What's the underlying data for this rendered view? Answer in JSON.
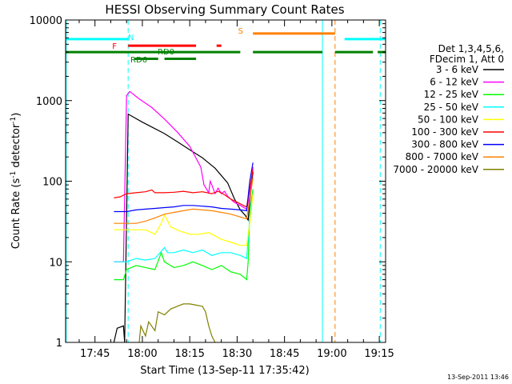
{
  "chart_data": {
    "type": "line",
    "title": "HESSI Observing Summary Count Rates",
    "xlabel": "Start Time (13-Sep-11 17:35:42)",
    "ylabel_main": "Count Rate (s",
    "ylabel_sup1": "-1",
    "ylabel_mid": " detector",
    "ylabel_sup2": "-1",
    "ylabel_end": ")",
    "y_scale": "log",
    "ylim": [
      1,
      10000
    ],
    "xlim_min": [
      1055.7,
      1157
    ],
    "x_ticks": [
      {
        "min": 1065,
        "label": "17:45"
      },
      {
        "min": 1080,
        "label": "18:00"
      },
      {
        "min": 1095,
        "label": "18:15"
      },
      {
        "min": 1110,
        "label": "18:30"
      },
      {
        "min": 1125,
        "label": "18:45"
      },
      {
        "min": 1140,
        "label": "19:00"
      },
      {
        "min": 1155,
        "label": "19:15"
      }
    ],
    "y_ticks": [
      {
        "v": 1,
        "label": "1"
      },
      {
        "v": 10,
        "label": "10"
      },
      {
        "v": 100,
        "label": "100"
      },
      {
        "v": 1000,
        "label": "1000"
      },
      {
        "v": 10000,
        "label": "10000"
      }
    ],
    "legend_header": [
      "Det 1,3,4,5,6,",
      "FDecim 1, Att 0"
    ],
    "legend_placement": "right",
    "series": [
      {
        "name": "3 - 6 keV",
        "color": "#000000",
        "points": [
          [
            1071,
            1
          ],
          [
            1072,
            1.5
          ],
          [
            1074,
            1.6
          ],
          [
            1074.4,
            1
          ],
          [
            1075.5,
            680
          ],
          [
            1077,
            630
          ],
          [
            1080,
            540
          ],
          [
            1083,
            470
          ],
          [
            1087,
            390
          ],
          [
            1091,
            310
          ],
          [
            1095,
            245
          ],
          [
            1099,
            195
          ],
          [
            1103,
            145
          ],
          [
            1107,
            95
          ],
          [
            1109,
            62
          ],
          [
            1111,
            44
          ],
          [
            1112.5,
            38
          ],
          [
            1113.5,
            33
          ],
          [
            1114,
            55
          ],
          [
            1115,
            130
          ]
        ]
      },
      {
        "name": "6 - 12 keV",
        "color": "#ff00ff",
        "points": [
          [
            1071,
            10
          ],
          [
            1074,
            10
          ],
          [
            1075,
            1150
          ],
          [
            1076,
            1300
          ],
          [
            1079,
            1050
          ],
          [
            1083,
            820
          ],
          [
            1087,
            590
          ],
          [
            1091,
            410
          ],
          [
            1095,
            270
          ],
          [
            1098.5,
            150
          ],
          [
            1099.5,
            90
          ],
          [
            1101,
            72
          ],
          [
            1101.5,
            100
          ],
          [
            1102,
            90
          ],
          [
            1103,
            70
          ],
          [
            1104,
            82
          ],
          [
            1105,
            70
          ],
          [
            1106,
            75
          ],
          [
            1107,
            65
          ],
          [
            1109,
            55
          ],
          [
            1111,
            50
          ],
          [
            1113,
            45
          ],
          [
            1114,
            65
          ],
          [
            1115,
            150
          ]
        ]
      },
      {
        "name": "12 - 25 keV",
        "color": "#00ff00",
        "points": [
          [
            1071,
            6
          ],
          [
            1074,
            6
          ],
          [
            1075,
            8
          ],
          [
            1078,
            9
          ],
          [
            1081,
            8.5
          ],
          [
            1084,
            8
          ],
          [
            1086,
            13
          ],
          [
            1087,
            10
          ],
          [
            1090,
            8.5
          ],
          [
            1093,
            9
          ],
          [
            1096,
            10
          ],
          [
            1099,
            9
          ],
          [
            1102,
            8
          ],
          [
            1105,
            9
          ],
          [
            1108,
            7.5
          ],
          [
            1111,
            7
          ],
          [
            1113,
            6
          ],
          [
            1113.5,
            10
          ],
          [
            1114,
            40
          ],
          [
            1115,
            80
          ]
        ]
      },
      {
        "name": "25 - 50 keV",
        "color": "#00ffff",
        "points": [
          [
            1071,
            10
          ],
          [
            1075,
            10
          ],
          [
            1078,
            11
          ],
          [
            1081,
            10.5
          ],
          [
            1084,
            11
          ],
          [
            1087,
            15
          ],
          [
            1088,
            13
          ],
          [
            1090,
            13
          ],
          [
            1093,
            14
          ],
          [
            1096,
            13
          ],
          [
            1099,
            14
          ],
          [
            1102,
            12
          ],
          [
            1105,
            13
          ],
          [
            1108,
            13
          ],
          [
            1111,
            12
          ],
          [
            1113,
            11
          ],
          [
            1114,
            35
          ],
          [
            1115,
            70
          ]
        ]
      },
      {
        "name": "50 - 100 keV",
        "color": "#ffff00",
        "points": [
          [
            1071,
            25
          ],
          [
            1075,
            25
          ],
          [
            1078,
            25
          ],
          [
            1081,
            25
          ],
          [
            1084,
            22
          ],
          [
            1086,
            30
          ],
          [
            1087,
            38
          ],
          [
            1089,
            27
          ],
          [
            1092,
            24
          ],
          [
            1095,
            22
          ],
          [
            1098,
            22
          ],
          [
            1101,
            23
          ],
          [
            1103,
            21
          ],
          [
            1105,
            19
          ],
          [
            1107,
            18
          ],
          [
            1109,
            17
          ],
          [
            1111,
            16
          ],
          [
            1113,
            16
          ],
          [
            1114,
            30
          ],
          [
            1115,
            70
          ]
        ]
      },
      {
        "name": "100 - 300 keV",
        "color": "#ff0000",
        "points": [
          [
            1071,
            62
          ],
          [
            1073,
            64
          ],
          [
            1075,
            70
          ],
          [
            1078,
            72
          ],
          [
            1081,
            74
          ],
          [
            1083,
            78
          ],
          [
            1084,
            72
          ],
          [
            1087,
            72
          ],
          [
            1090,
            73
          ],
          [
            1093,
            75
          ],
          [
            1096,
            72
          ],
          [
            1099,
            74
          ],
          [
            1102,
            70
          ],
          [
            1104,
            75
          ],
          [
            1106,
            68
          ],
          [
            1108,
            60
          ],
          [
            1110,
            55
          ],
          [
            1112,
            50
          ],
          [
            1113,
            48
          ],
          [
            1114,
            80
          ],
          [
            1115,
            140
          ]
        ]
      },
      {
        "name": "300 - 800 keV",
        "color": "#0000ff",
        "points": [
          [
            1071,
            42
          ],
          [
            1074,
            42
          ],
          [
            1075,
            42
          ],
          [
            1078,
            44
          ],
          [
            1081,
            45
          ],
          [
            1084,
            46
          ],
          [
            1087,
            47
          ],
          [
            1090,
            48
          ],
          [
            1093,
            50
          ],
          [
            1096,
            50
          ],
          [
            1099,
            49
          ],
          [
            1102,
            48
          ],
          [
            1105,
            46
          ],
          [
            1108,
            45
          ],
          [
            1111,
            44
          ],
          [
            1113,
            43
          ],
          [
            1114,
            100
          ],
          [
            1115,
            170
          ]
        ]
      },
      {
        "name": "800 - 7000 keV",
        "color": "#ff8000",
        "points": [
          [
            1071,
            30
          ],
          [
            1075,
            30
          ],
          [
            1078,
            30
          ],
          [
            1081,
            32
          ],
          [
            1084,
            35
          ],
          [
            1087,
            39
          ],
          [
            1090,
            41
          ],
          [
            1093,
            43
          ],
          [
            1096,
            45
          ],
          [
            1099,
            44
          ],
          [
            1102,
            43
          ],
          [
            1105,
            41
          ],
          [
            1108,
            39
          ],
          [
            1111,
            36
          ],
          [
            1113,
            34
          ],
          [
            1114,
            60
          ],
          [
            1115,
            110
          ]
        ]
      },
      {
        "name": "7000 - 20000 keV",
        "color": "#808000",
        "points": [
          [
            1079,
            1
          ],
          [
            1079.5,
            1.6
          ],
          [
            1081,
            1.2
          ],
          [
            1082,
            1.8
          ],
          [
            1084,
            1.4
          ],
          [
            1085,
            2.4
          ],
          [
            1087,
            2.2
          ],
          [
            1089,
            2.6
          ],
          [
            1091,
            2.8
          ],
          [
            1093,
            3
          ],
          [
            1095,
            3
          ],
          [
            1097,
            2.9
          ],
          [
            1099,
            2.8
          ],
          [
            1100,
            2.4
          ],
          [
            1101,
            1.6
          ],
          [
            1102,
            1.2
          ],
          [
            1103,
            1
          ]
        ]
      }
    ],
    "flag_labels": [
      {
        "text": "N",
        "color": "#00ffff"
      },
      {
        "text": "F",
        "color": "#ff0000"
      },
      {
        "text": "RD0",
        "color": "#008000"
      },
      {
        "text": "RD6",
        "color": "#008000"
      },
      {
        "text": "S",
        "color": "#ff8000"
      }
    ],
    "flag_bars": [
      {
        "color": "#00ffff",
        "y": 5800,
        "ranges": [
          [
            1055.7,
            1075.5
          ],
          [
            1144,
            1157
          ]
        ]
      },
      {
        "color": "#ff0000",
        "y": 4800,
        "ranges": [
          [
            1075.5,
            1097
          ],
          [
            1103.5,
            1105
          ]
        ]
      },
      {
        "color": "#008000",
        "y": 4000,
        "ranges": [
          [
            1055.7,
            1111
          ],
          [
            1115,
            1137
          ],
          [
            1141,
            1153
          ],
          [
            1154.5,
            1157
          ]
        ]
      },
      {
        "color": "#008000",
        "y": 3300,
        "ranges": [
          [
            1077.5,
            1085
          ],
          [
            1087,
            1097
          ]
        ]
      },
      {
        "color": "#ff8000",
        "y": 6800,
        "ranges": [
          [
            1115,
            1141
          ]
        ]
      }
    ],
    "vlines": [
      {
        "x": 1055.9,
        "color": "#00ffff",
        "dash": false
      },
      {
        "x": 1075.5,
        "color": "#00ffff",
        "dash": true
      },
      {
        "x": 1137,
        "color": "#00ffff",
        "dash": false
      },
      {
        "x": 1141,
        "color": "#ff8000",
        "dash": true
      },
      {
        "x": 1155.3,
        "color": "#00ffff",
        "dash": true
      }
    ],
    "footer_stamp": "13-Sep-2011 13:46"
  }
}
